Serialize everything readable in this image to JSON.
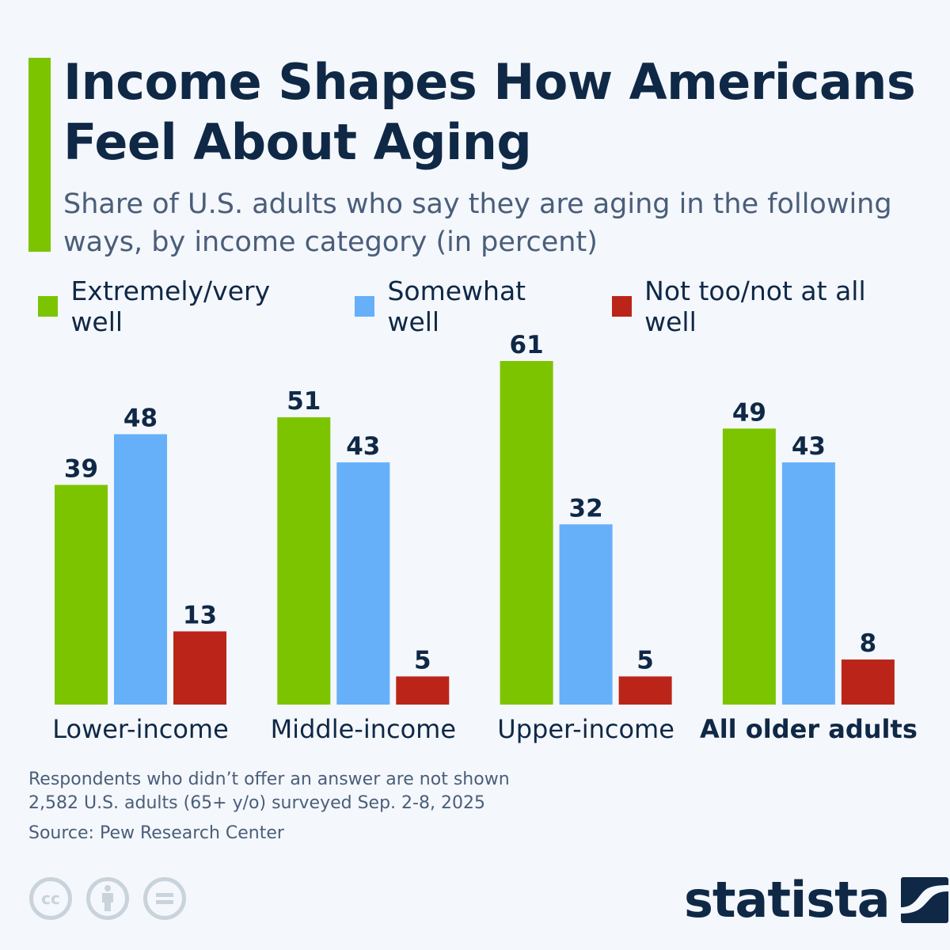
{
  "title": "Income Shapes How Americans Feel About Aging",
  "subtitle": "Share of U.S. adults who say they are aging in the following ways, by income category (in percent)",
  "chart_data": {
    "type": "bar",
    "categories": [
      "Lower-income",
      "Middle-income",
      "Upper-income",
      "All older adults"
    ],
    "series": [
      {
        "name": "Extremely/very well",
        "color": "#7cc400",
        "values": [
          39,
          51,
          61,
          49
        ]
      },
      {
        "name": "Somewhat well",
        "color": "#66b0f9",
        "values": [
          48,
          43,
          32,
          43
        ]
      },
      {
        "name": "Not too/not at all well",
        "color": "#bb2519",
        "values": [
          13,
          5,
          5,
          8
        ]
      }
    ],
    "bold_category": "All older adults",
    "legend_position": "top",
    "grid": false,
    "ylim": [
      0,
      61
    ]
  },
  "footer": {
    "note": "Respondents who didn’t offer an answer are not shown",
    "survey": "2,582 U.S. adults (65+ y/o) surveyed Sep. 2-8, 2025",
    "source": "Source: Pew Research Center"
  },
  "license_icons": [
    "cc-icon",
    "attribution-icon",
    "no-derivatives-icon"
  ],
  "logo": "statista"
}
